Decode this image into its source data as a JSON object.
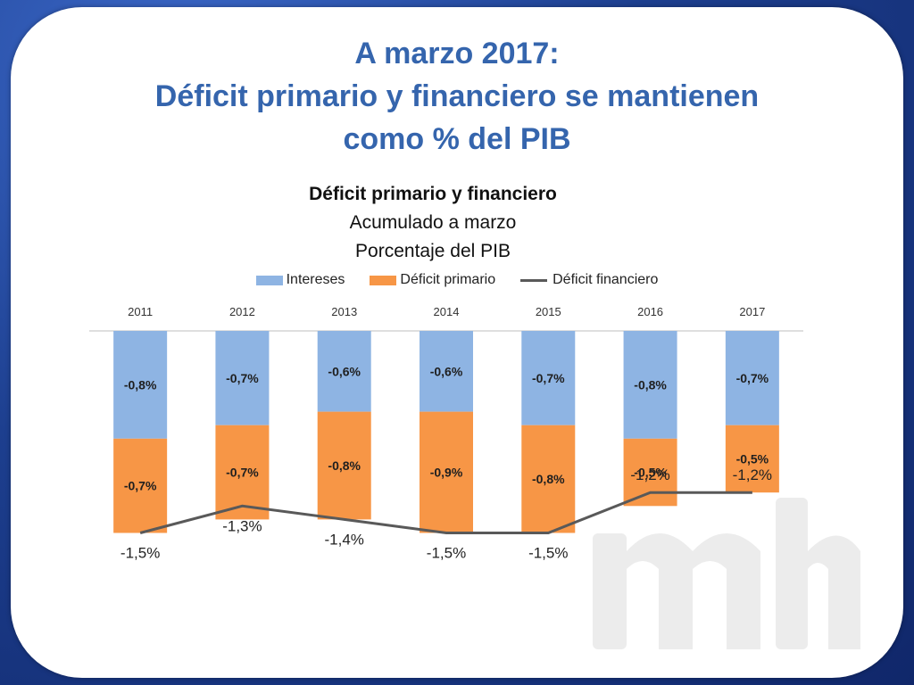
{
  "slide": {
    "title_lines": [
      "A marzo 2017:",
      "Déficit primario y financiero se mantienen",
      "como % del PIB"
    ]
  },
  "colors": {
    "intereses": "#8eb4e3",
    "deficit_primario": "#f79646",
    "deficit_financiero": "#595959",
    "title": "#3565ad"
  },
  "chart_data": {
    "type": "bar",
    "title": "Déficit primario y financiero",
    "subtitle_lines": [
      "Acumulado a marzo",
      "Porcentaje del PIB"
    ],
    "categories": [
      "2011",
      "2012",
      "2013",
      "2014",
      "2015",
      "2016",
      "2017"
    ],
    "series": [
      {
        "name": "Intereses",
        "type": "bar",
        "values": [
          -0.8,
          -0.7,
          -0.6,
          -0.6,
          -0.7,
          -0.8,
          -0.7
        ],
        "labels": [
          "-0,8%",
          "-0,7%",
          "-0,6%",
          "-0,6%",
          "-0,7%",
          "-0,8%",
          "-0,7%"
        ]
      },
      {
        "name": "Déficit primario",
        "type": "bar",
        "values": [
          -0.7,
          -0.7,
          -0.8,
          -0.9,
          -0.8,
          -0.5,
          -0.5
        ],
        "labels": [
          "-0,7%",
          "-0,7%",
          "-0,8%",
          "-0,9%",
          "-0,8%",
          "-0,5%",
          "-0,5%"
        ]
      },
      {
        "name": "Déficit financiero",
        "type": "line",
        "values": [
          -1.5,
          -1.3,
          -1.4,
          -1.5,
          -1.5,
          -1.2,
          -1.2
        ],
        "labels": [
          "-1,5%",
          "-1,3%",
          "-1,4%",
          "-1,5%",
          "-1,5%",
          "-1,2%",
          "-1,2%"
        ]
      }
    ],
    "stacked": true,
    "ylim": [
      -1.6,
      0
    ],
    "x_axis_position": "top",
    "grid": false,
    "legend": "top"
  }
}
